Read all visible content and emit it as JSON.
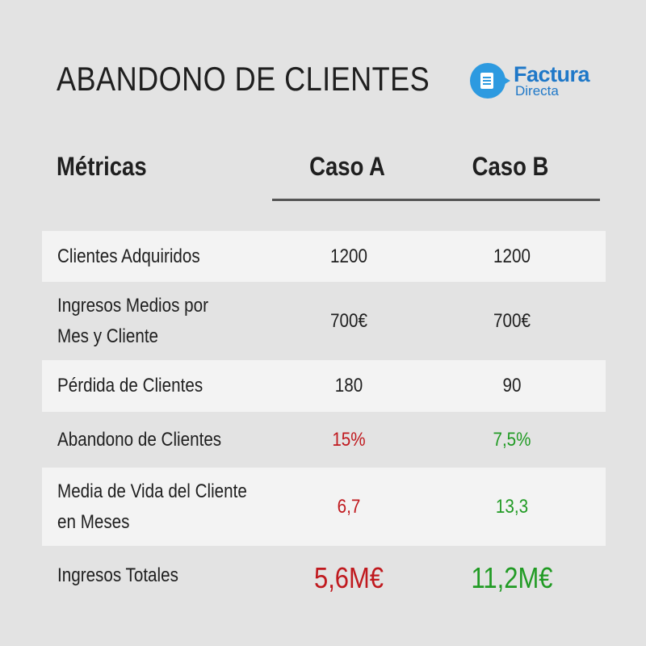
{
  "title": "ABANDONO DE CLIENTES",
  "logo": {
    "word1": "Factura",
    "word2": "Directa",
    "icon": "document-chat-bubble-icon",
    "color": "#2d9ae0"
  },
  "columns": {
    "metric": "Métricas",
    "a": "Caso A",
    "b": "Caso B"
  },
  "colors": {
    "negative": "#c0191e",
    "positive": "#219b24",
    "row_shade": "#f3f3f3",
    "background": "#e3e3e3"
  },
  "rows": [
    {
      "label": "Clientes Adquiridos",
      "a": "1200",
      "b": "1200"
    },
    {
      "label": "Ingresos Medios por\nMes y Cliente",
      "a": "700€",
      "b": "700€"
    },
    {
      "label": "Pérdida de Clientes",
      "a": "180",
      "b": "90"
    },
    {
      "label": "Abandono de Clientes",
      "a": "15%",
      "b": "7,5%"
    },
    {
      "label": "Media de Vida del Cliente\nen Meses",
      "a": "6,7",
      "b": "13,3"
    },
    {
      "label": "Ingresos Totales",
      "a": "5,6M€",
      "b": "11,2M€"
    }
  ]
}
